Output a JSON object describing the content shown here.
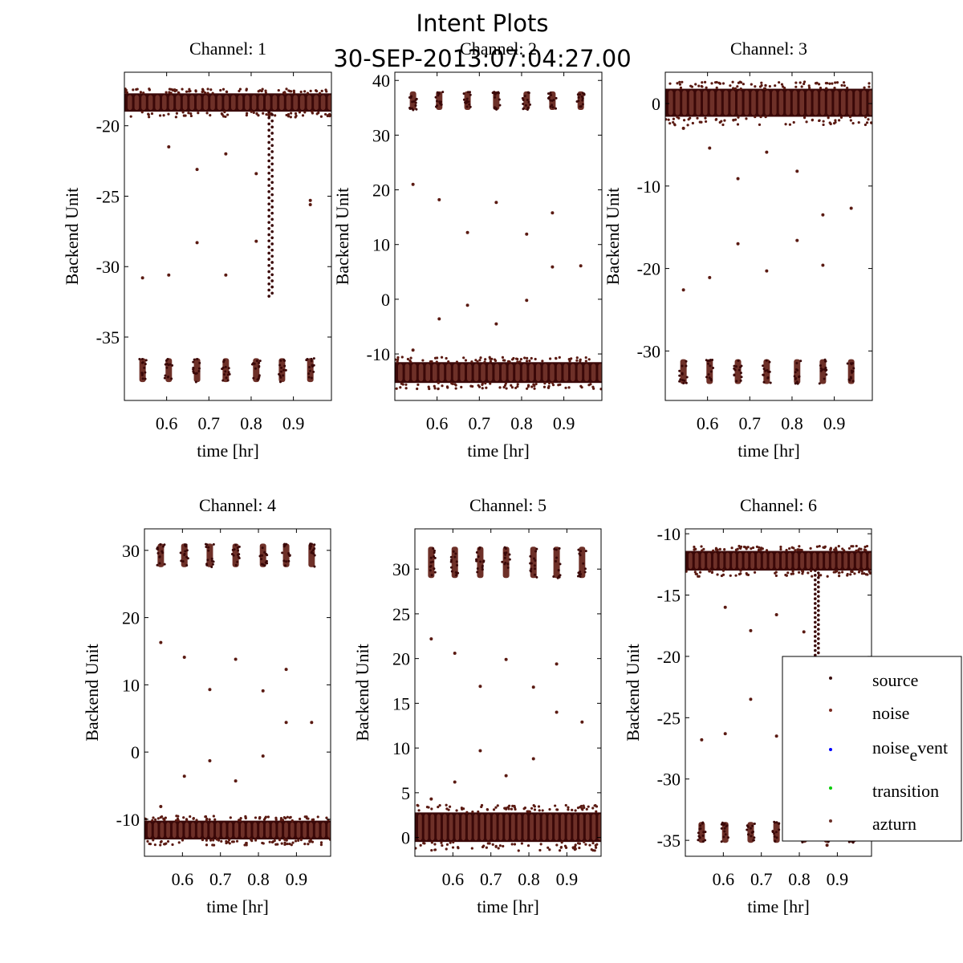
{
  "figure": {
    "title": "Intent Plots",
    "subtitle": "30-SEP-2013:07:04:27.00"
  },
  "legend": {
    "entries": [
      {
        "label": "source",
        "color": "#3a0f0f"
      },
      {
        "label": "noise",
        "color": "#7a2a20"
      },
      {
        "label": "noise_event",
        "label_main": "noise",
        "label_sub": "e",
        "label_tail": "vent",
        "color": "#0000ff"
      },
      {
        "label": "transition",
        "color": "#00cc00"
      },
      {
        "label": "azturn",
        "color": "#6b3028"
      }
    ]
  },
  "colors": {
    "band_dark": "#3a0808",
    "band_mid": "#6e3028",
    "point": "#5a1a12"
  },
  "chart_data": [
    {
      "type": "scatter",
      "title": "Channel: 1",
      "xlabel": "time [hr]",
      "ylabel": "Backend Unit",
      "xlim": [
        0.5,
        0.99
      ],
      "ylim": [
        -39.5,
        -16.2
      ],
      "xticks": [
        0.6,
        0.7,
        0.8,
        0.9
      ],
      "xtick_labels": [
        "0.6",
        "0.7",
        "0.8",
        "0.9"
      ],
      "yticks": [
        -20,
        -25,
        -30,
        -35
      ],
      "ytick_labels": [
        "-20",
        "-25",
        "-30",
        "-35"
      ],
      "main_band": [
        -19.0,
        -17.7
      ],
      "cal_clusters": {
        "x": [
          0.543,
          0.605,
          0.672,
          0.74,
          0.812,
          0.873,
          0.94
        ],
        "y_range": [
          -38.2,
          -36.5
        ]
      },
      "transient_column": {
        "x": 0.846,
        "y_range": [
          -32.1,
          -19.0
        ]
      },
      "outliers": [
        {
          "x": 0.543,
          "y": -30.8
        },
        {
          "x": 0.605,
          "y": -21.5
        },
        {
          "x": 0.605,
          "y": -30.6
        },
        {
          "x": 0.672,
          "y": -23.1
        },
        {
          "x": 0.672,
          "y": -28.3
        },
        {
          "x": 0.74,
          "y": -22.0
        },
        {
          "x": 0.74,
          "y": -30.6
        },
        {
          "x": 0.812,
          "y": -23.4
        },
        {
          "x": 0.812,
          "y": -28.2
        },
        {
          "x": 0.94,
          "y": -25.3
        },
        {
          "x": 0.94,
          "y": -25.6
        }
      ]
    },
    {
      "type": "scatter",
      "title": "Channel: 2",
      "xlabel": "time [hr]",
      "ylabel": "Backend Unit",
      "xlim": [
        0.5,
        0.99
      ],
      "ylim": [
        -18.5,
        41.5
      ],
      "xticks": [
        0.6,
        0.7,
        0.8,
        0.9
      ],
      "xtick_labels": [
        "0.6",
        "0.7",
        "0.8",
        "0.9"
      ],
      "yticks": [
        40,
        30,
        20,
        10,
        0,
        -10
      ],
      "ytick_labels": [
        "40",
        "30",
        "20",
        "10",
        "0",
        "-10"
      ],
      "main_band": [
        -15.3,
        -11.5
      ],
      "cal_clusters": {
        "x": [
          0.543,
          0.605,
          0.672,
          0.74,
          0.812,
          0.873,
          0.94
        ],
        "y_range": [
          34.6,
          38.0
        ]
      },
      "outliers": [
        {
          "x": 0.543,
          "y": 21.0
        },
        {
          "x": 0.543,
          "y": -9.3
        },
        {
          "x": 0.605,
          "y": 18.2
        },
        {
          "x": 0.605,
          "y": -3.6
        },
        {
          "x": 0.672,
          "y": 12.2
        },
        {
          "x": 0.672,
          "y": -1.1
        },
        {
          "x": 0.74,
          "y": 17.7
        },
        {
          "x": 0.74,
          "y": -4.5
        },
        {
          "x": 0.812,
          "y": 11.9
        },
        {
          "x": 0.812,
          "y": -0.2
        },
        {
          "x": 0.873,
          "y": 15.8
        },
        {
          "x": 0.873,
          "y": 5.9
        },
        {
          "x": 0.94,
          "y": 6.1
        }
      ]
    },
    {
      "type": "scatter",
      "title": "Channel: 3",
      "xlabel": "time [hr]",
      "ylabel": "Backend Unit",
      "xlim": [
        0.5,
        0.99
      ],
      "ylim": [
        -36,
        3.8
      ],
      "xticks": [
        0.6,
        0.7,
        0.8,
        0.9
      ],
      "xtick_labels": [
        "0.6",
        "0.7",
        "0.8",
        "0.9"
      ],
      "yticks": [
        0,
        -10,
        -20,
        -30
      ],
      "ytick_labels": [
        "0",
        "-10",
        "-20",
        "-30"
      ],
      "main_band": [
        -1.6,
        1.8
      ],
      "cal_clusters": {
        "x": [
          0.543,
          0.605,
          0.672,
          0.74,
          0.812,
          0.873,
          0.94
        ],
        "y_range": [
          -34.0,
          -31.0
        ]
      },
      "outliers": [
        {
          "x": 0.543,
          "y": -3.0
        },
        {
          "x": 0.543,
          "y": -22.6
        },
        {
          "x": 0.605,
          "y": -5.4
        },
        {
          "x": 0.605,
          "y": -21.1
        },
        {
          "x": 0.672,
          "y": -9.1
        },
        {
          "x": 0.672,
          "y": -17.0
        },
        {
          "x": 0.74,
          "y": -5.9
        },
        {
          "x": 0.74,
          "y": -20.3
        },
        {
          "x": 0.812,
          "y": -8.2
        },
        {
          "x": 0.812,
          "y": -16.6
        },
        {
          "x": 0.873,
          "y": -13.5
        },
        {
          "x": 0.873,
          "y": -19.6
        },
        {
          "x": 0.94,
          "y": -12.7
        }
      ]
    },
    {
      "type": "scatter",
      "title": "Channel: 4",
      "xlabel": "time [hr]",
      "ylabel": "Backend Unit",
      "xlim": [
        0.5,
        0.99
      ],
      "ylim": [
        -15.5,
        33.2
      ],
      "xticks": [
        0.6,
        0.7,
        0.8,
        0.9
      ],
      "xtick_labels": [
        "0.6",
        "0.7",
        "0.8",
        "0.9"
      ],
      "yticks": [
        30,
        20,
        10,
        0,
        -10
      ],
      "ytick_labels": [
        "30",
        "20",
        "10",
        "0",
        "-10"
      ],
      "main_band": [
        -13.0,
        -10.2
      ],
      "cal_clusters": {
        "x": [
          0.543,
          0.605,
          0.672,
          0.74,
          0.812,
          0.873,
          0.94
        ],
        "y_range": [
          27.5,
          31.0
        ]
      },
      "outliers": [
        {
          "x": 0.543,
          "y": 16.3
        },
        {
          "x": 0.543,
          "y": -8.1
        },
        {
          "x": 0.605,
          "y": 14.1
        },
        {
          "x": 0.605,
          "y": -3.6
        },
        {
          "x": 0.672,
          "y": 9.3
        },
        {
          "x": 0.672,
          "y": -1.3
        },
        {
          "x": 0.74,
          "y": 13.8
        },
        {
          "x": 0.74,
          "y": -4.3
        },
        {
          "x": 0.812,
          "y": 9.1
        },
        {
          "x": 0.812,
          "y": -0.6
        },
        {
          "x": 0.873,
          "y": 12.3
        },
        {
          "x": 0.873,
          "y": 4.4
        },
        {
          "x": 0.94,
          "y": 4.4
        }
      ]
    },
    {
      "type": "scatter",
      "title": "Channel: 5",
      "xlabel": "time [hr]",
      "ylabel": "Backend Unit",
      "xlim": [
        0.5,
        0.99
      ],
      "ylim": [
        -2.1,
        34.5
      ],
      "xticks": [
        0.6,
        0.7,
        0.8,
        0.9
      ],
      "xtick_labels": [
        "0.6",
        "0.7",
        "0.8",
        "0.9"
      ],
      "yticks": [
        30,
        25,
        20,
        15,
        10,
        5,
        0
      ],
      "ytick_labels": [
        "30",
        "25",
        "20",
        "15",
        "10",
        "5",
        "0"
      ],
      "main_band": [
        -0.5,
        2.8
      ],
      "cal_clusters": {
        "x": [
          0.543,
          0.605,
          0.672,
          0.74,
          0.812,
          0.873,
          0.94
        ],
        "y_range": [
          29.0,
          32.5
        ]
      },
      "outliers": [
        {
          "x": 0.543,
          "y": 22.2
        },
        {
          "x": 0.543,
          "y": 4.3
        },
        {
          "x": 0.605,
          "y": 20.6
        },
        {
          "x": 0.605,
          "y": 6.2
        },
        {
          "x": 0.672,
          "y": 16.9
        },
        {
          "x": 0.672,
          "y": 9.7
        },
        {
          "x": 0.74,
          "y": 19.9
        },
        {
          "x": 0.74,
          "y": 6.9
        },
        {
          "x": 0.812,
          "y": 16.8
        },
        {
          "x": 0.812,
          "y": 8.8
        },
        {
          "x": 0.873,
          "y": 19.4
        },
        {
          "x": 0.873,
          "y": 14.0
        },
        {
          "x": 0.94,
          "y": 12.9
        }
      ]
    },
    {
      "type": "scatter",
      "title": "Channel: 6",
      "xlabel": "time [hr]",
      "ylabel": "Backend Unit",
      "xlim": [
        0.5,
        0.99
      ],
      "ylim": [
        -36.3,
        -9.6
      ],
      "xticks": [
        0.6,
        0.7,
        0.8,
        0.9
      ],
      "xtick_labels": [
        "0.6",
        "0.7",
        "0.8",
        "0.9"
      ],
      "yticks": [
        -10,
        -15,
        -20,
        -25,
        -30,
        -35
      ],
      "ytick_labels": [
        "-10",
        "-15",
        "-20",
        "-25",
        "-30",
        "-35"
      ],
      "main_band": [
        -13.0,
        -11.4
      ],
      "cal_clusters": {
        "x": [
          0.543,
          0.605,
          0.672,
          0.74,
          0.812,
          0.873,
          0.94
        ],
        "y_range": [
          -35.2,
          -33.5
        ]
      },
      "transient_column": {
        "x": 0.846,
        "y_range": [
          -24.5,
          -13.0
        ]
      },
      "outliers": [
        {
          "x": 0.543,
          "y": -26.8
        },
        {
          "x": 0.605,
          "y": -16.0
        },
        {
          "x": 0.605,
          "y": -26.3
        },
        {
          "x": 0.672,
          "y": -17.9
        },
        {
          "x": 0.672,
          "y": -23.5
        },
        {
          "x": 0.74,
          "y": -16.6
        },
        {
          "x": 0.74,
          "y": -26.5
        },
        {
          "x": 0.812,
          "y": -18.0
        },
        {
          "x": 0.812,
          "y": -23.2
        },
        {
          "x": 0.873,
          "y": -35.4
        }
      ]
    }
  ]
}
